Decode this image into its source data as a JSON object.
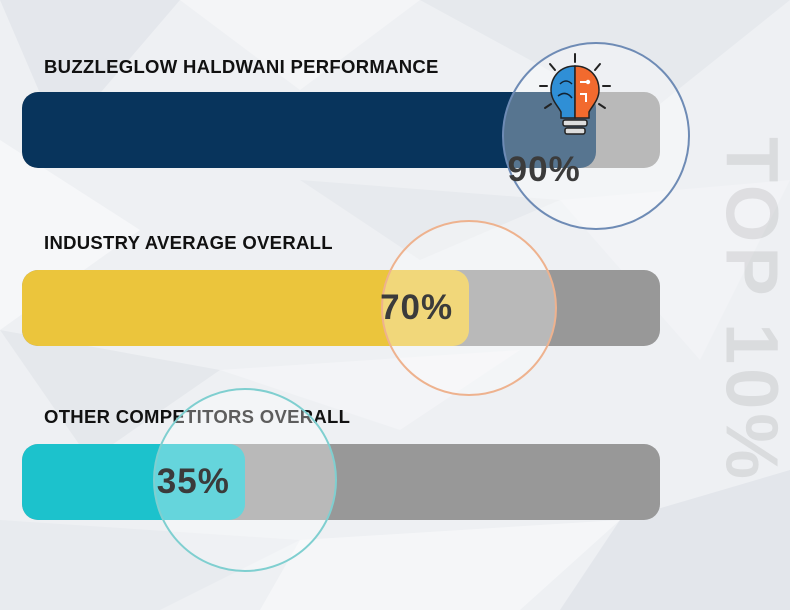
{
  "watermark": "TOP 10%",
  "chart_data": {
    "type": "bar",
    "orientation": "horizontal",
    "categories": [
      "BUZZLEGLOW HALDWANI PERFORMANCE",
      "INDUSTRY AVERAGE OVERALL",
      "OTHER COMPETITORS  OVERALL"
    ],
    "values": [
      90,
      70,
      35
    ],
    "value_labels": [
      "90%",
      "70%",
      "35%"
    ],
    "value_max": 100,
    "colors": [
      "#08345c",
      "#ebc53c",
      "#1cc2cc"
    ],
    "ring_colors": [
      "#6e8bb5",
      "#eeb28e",
      "#7fcfd0"
    ],
    "track_color": "#989898"
  }
}
